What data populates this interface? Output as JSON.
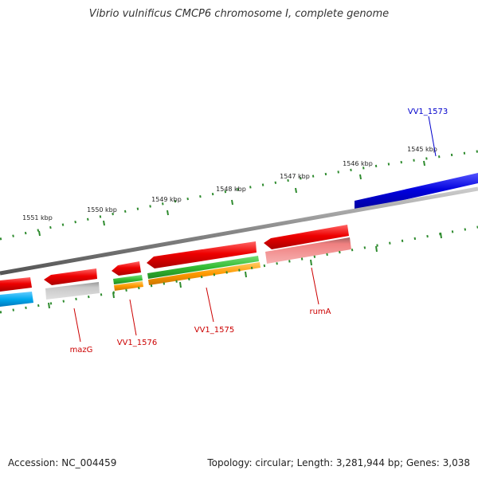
{
  "header": {
    "title": "Vibrio vulnificus CMCP6 chromosome I, complete genome"
  },
  "footer": {
    "accession": "Accession: NC_004459",
    "summary": "Topology: circular; Length: 3,281,944 bp; Genes: 3,038"
  },
  "ticks": [
    {
      "label": "1545 kbp"
    },
    {
      "label": "1546 kbp"
    },
    {
      "label": "1547 kbp"
    },
    {
      "label": "1548 kbp"
    },
    {
      "label": "1549 kbp"
    },
    {
      "label": "1550 kbp"
    },
    {
      "label": "1551 kbp"
    }
  ],
  "genes": [
    {
      "label": "VV1_1573",
      "color": "#0000cc"
    },
    {
      "label": "rumA",
      "color": "#cc0000"
    },
    {
      "label": "VV1_1575",
      "color": "#cc0000"
    },
    {
      "label": "VV1_1576",
      "color": "#cc0000"
    },
    {
      "label": "mazG",
      "color": "#cc0000"
    }
  ],
  "colors": {
    "backbone": "#808080",
    "tick": "#2e8b2e",
    "cds_forward": "#0000dd",
    "cds_reverse": "#ee0000",
    "trna": "#33bb33",
    "orange_feature": "#ff9900",
    "pink_feature": "#f08080",
    "grey_feature": "#b0b0b0",
    "cyan_feature": "#00aaee"
  }
}
